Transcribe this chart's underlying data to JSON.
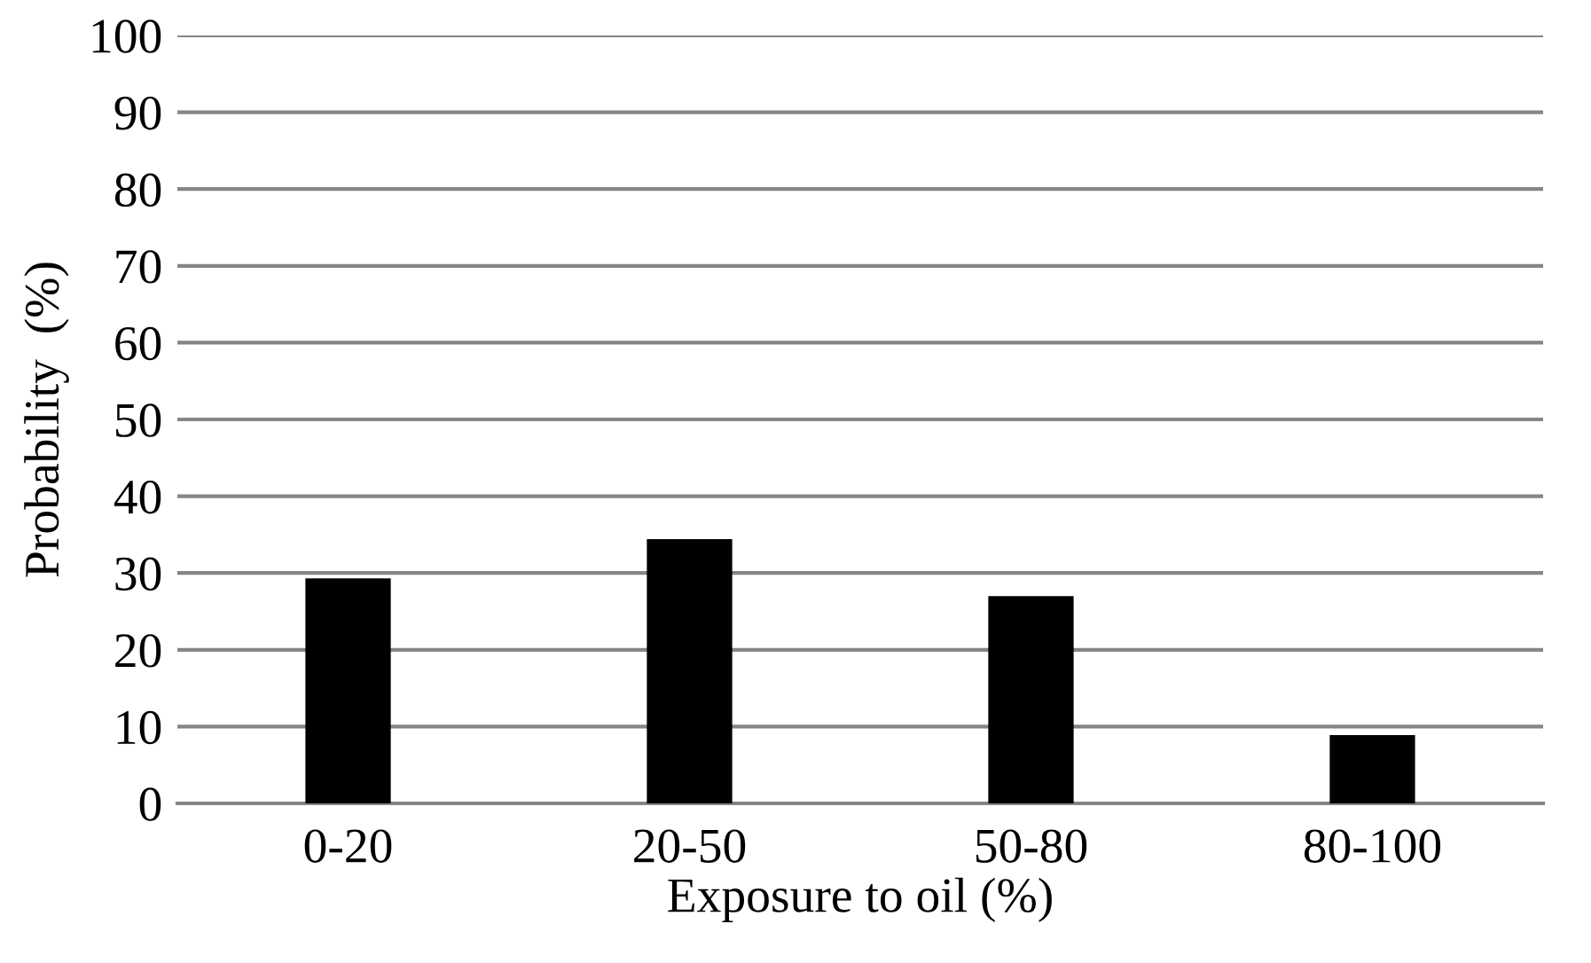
{
  "chart_data": {
    "type": "bar",
    "xlabel": "Exposure to oil (%)",
    "ylabel": "Probability  (%)",
    "categories": [
      "0-20",
      "20-50",
      "50-80",
      "80-100"
    ],
    "values": [
      29.3,
      34.4,
      27.0,
      8.9
    ],
    "color": "#000000",
    "ylim": [
      0,
      100
    ],
    "yticks": [
      0,
      10,
      20,
      30,
      40,
      50,
      60,
      70,
      80,
      90,
      100
    ],
    "grid": "y",
    "legend": false
  }
}
